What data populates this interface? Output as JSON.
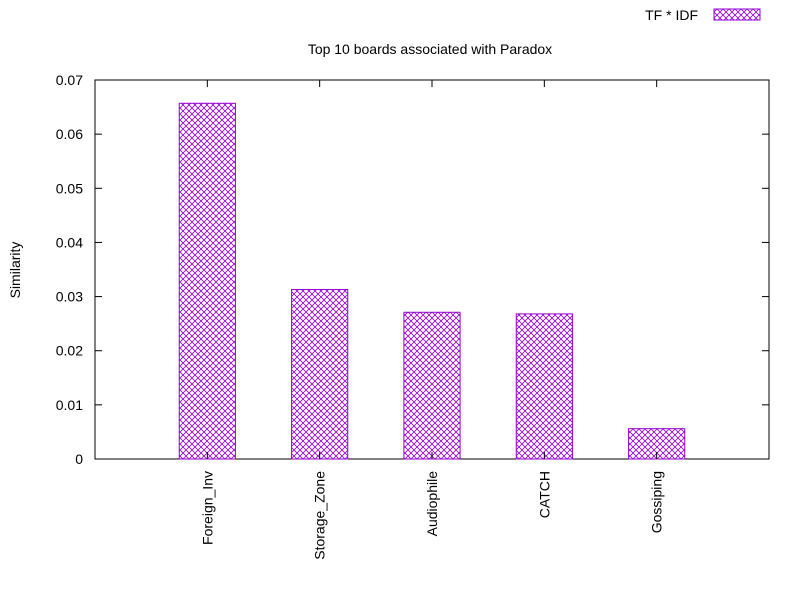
{
  "chart_data": {
    "type": "bar",
    "title": "Top 10 boards associated with Paradox",
    "xlabel": "",
    "ylabel": "Similarity",
    "categories": [
      "Foreign_Inv",
      "Storage_Zone",
      "Audiophile",
      "CATCH",
      "Gossiping"
    ],
    "series": [
      {
        "name": "TF * IDF",
        "values": [
          0.0657,
          0.0313,
          0.0271,
          0.0268,
          0.0056
        ]
      }
    ],
    "ylim": [
      0,
      0.07
    ],
    "yticks": [
      "0",
      "0.01",
      "0.02",
      "0.03",
      "0.04",
      "0.05",
      "0.06",
      "0.07"
    ],
    "legend_position": "top-right",
    "grid": false,
    "bar_pattern": "crosshatch",
    "bar_color": "#9400d3"
  }
}
